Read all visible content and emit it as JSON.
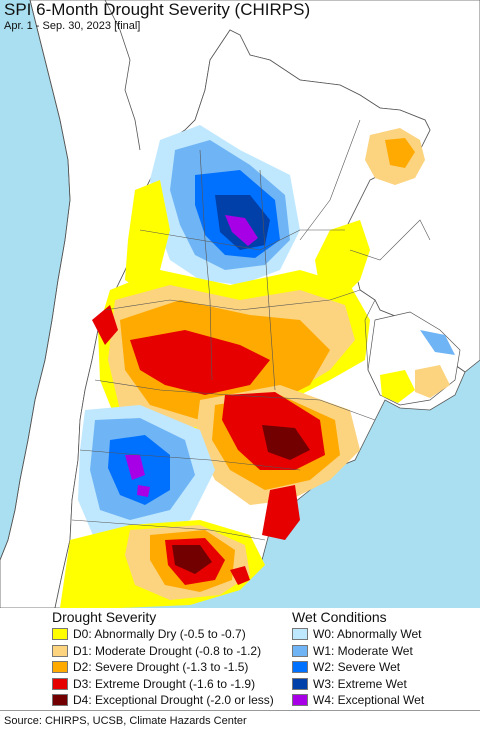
{
  "title": "SPI 6-Month Drought Severity (CHIRPS)",
  "subtitle": "Apr. 1 - Sep. 30, 2023 [final]",
  "legend": {
    "drought_heading": "Drought Severity",
    "wet_heading": "Wet Conditions",
    "drought": [
      {
        "label": "D0: Abnormally Dry (-0.5 to -0.7)",
        "color": "#ffff00"
      },
      {
        "label": "D1: Moderate Drought (-0.8 to -1.2)",
        "color": "#fcd37f"
      },
      {
        "label": "D2: Severe Drought (-1.3 to -1.5)",
        "color": "#ffaa00"
      },
      {
        "label": "D3: Extreme Drought (-1.6 to -1.9)",
        "color": "#e60000"
      },
      {
        "label": "D4: Exceptional Drought (-2.0 or less)",
        "color": "#730000"
      }
    ],
    "wet": [
      {
        "label": "W0: Abnormally Wet",
        "color": "#bfe8ff"
      },
      {
        "label": "W1: Moderate Wet",
        "color": "#6fb4f5"
      },
      {
        "label": "W2: Severe Wet",
        "color": "#0070ff"
      },
      {
        "label": "W3: Extreme Wet",
        "color": "#0040a8"
      },
      {
        "label": "W4: Exceptional Wet",
        "color": "#a800e6"
      }
    ]
  },
  "source": "Source: CHIRPS, UCSB, Climate Hazards Center",
  "colors": {
    "ocean": "#a9dff0",
    "land_outside": "#ffffff",
    "border": "#555555"
  }
}
